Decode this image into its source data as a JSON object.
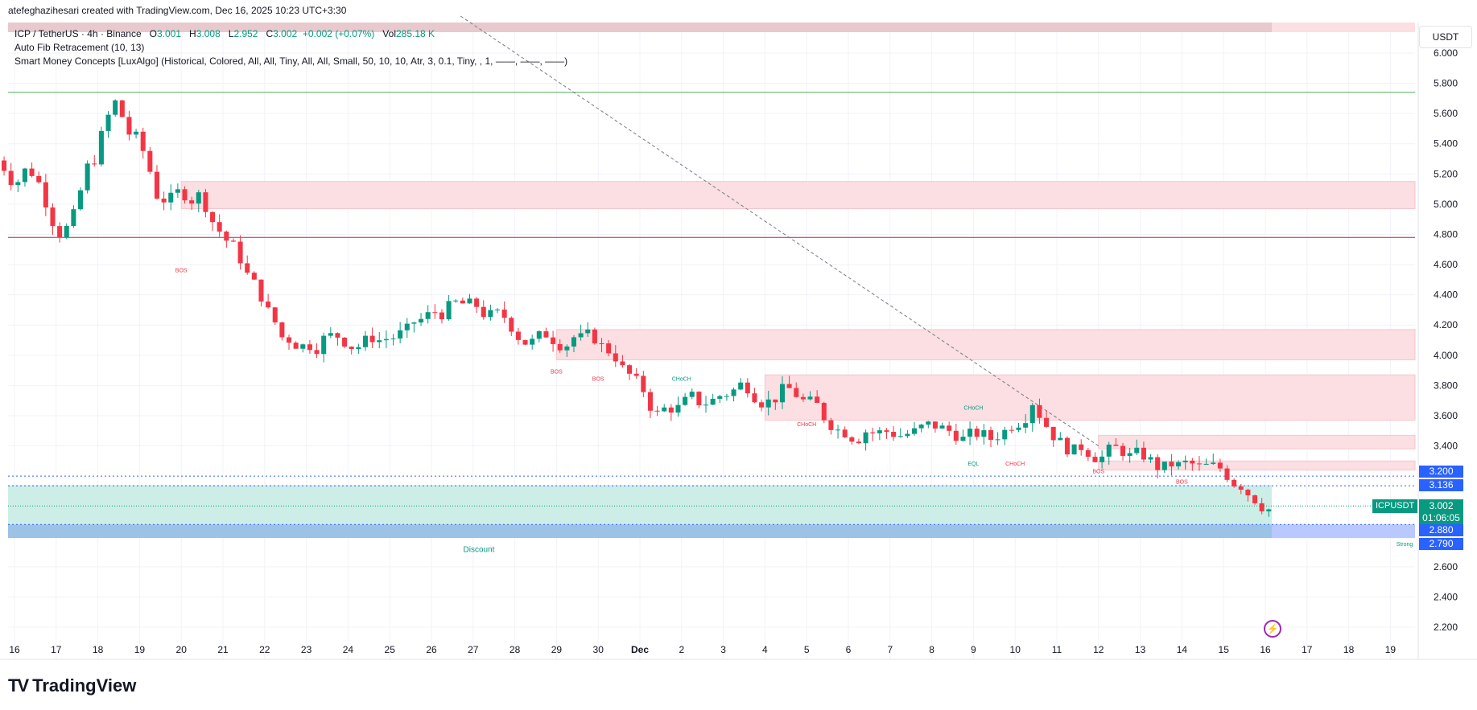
{
  "header": {
    "author_line": "atefeghazihesari created with TradingView.com, Dec 16, 2025 10:23 UTC+3:30"
  },
  "legend": {
    "symbol": "ICP / TetherUS · 4h · Binance",
    "o_label": "O",
    "o_value": "3.001",
    "h_label": "H",
    "h_value": "3.008",
    "l_label": "L",
    "l_value": "2.952",
    "c_label": "C",
    "c_value": "3.002",
    "change": "+0.002 (+0.07%)",
    "vol_label": "Vol",
    "vol_value": "285.18 K",
    "indicator1": "Auto Fib Retracement (10, 13)",
    "indicator2": "Smart Money Concepts [LuxAlgo] (Historical, Colored, All, All, Tiny, All, All, Small, 50, 10, 10, Atr, 3, 0.1, Tiny, , 1, ——, ——, ——)"
  },
  "price_axis": {
    "currency": "USDT",
    "ticks": [
      "6.000",
      "5.800",
      "5.600",
      "5.400",
      "5.200",
      "5.000",
      "4.800",
      "4.600",
      "4.400",
      "4.200",
      "4.000",
      "3.800",
      "3.600",
      "3.400",
      "2.600",
      "2.400",
      "2.200"
    ],
    "tag_3200": "3.200",
    "tag_3136": "3.136",
    "tag_2880": "2.880",
    "tag_2790": "2.790",
    "last_symbol": "ICPUSDT",
    "last_price": "3.002",
    "countdown": "01:06:05"
  },
  "time_axis": [
    "16",
    "17",
    "18",
    "19",
    "20",
    "21",
    "22",
    "23",
    "24",
    "25",
    "26",
    "27",
    "28",
    "29",
    "30",
    "Dec",
    "2",
    "3",
    "4",
    "5",
    "6",
    "7",
    "8",
    "9",
    "10",
    "11",
    "12",
    "13",
    "14",
    "15",
    "16",
    "17",
    "18",
    "19"
  ],
  "annotations": {
    "bos": "BOS",
    "choch": "CHoCH",
    "eql": "EQL",
    "discount": "Discount",
    "strong": "Strong"
  },
  "colors": {
    "up": "#089981",
    "down": "#f23645",
    "supply_zone": "#fbdfe2",
    "discount_zone": "#cdeee6",
    "blue_zone": "#9cc3e6",
    "green_line": "#4caf50",
    "red_line": "#c62828",
    "blue_tag": "#2962ff"
  },
  "brand": {
    "name": "TradingView"
  },
  "chart_data": {
    "type": "candlestick",
    "symbol": "ICP / TetherUS",
    "interval": "4h",
    "exchange": "Binance",
    "ylim": [
      2.1,
      6.2
    ],
    "x_dates_label_start": "16",
    "closes_daily_approx": [
      {
        "x": "Nov 16",
        "v": 5.25
      },
      {
        "x": "Nov 17",
        "v": 4.85
      },
      {
        "x": "Nov 18",
        "v": 5.65
      },
      {
        "x": "Nov 19",
        "v": 5.1
      },
      {
        "x": "Nov 20",
        "v": 5.05
      },
      {
        "x": "Nov 21",
        "v": 4.65
      },
      {
        "x": "Nov 22",
        "v": 4.12
      },
      {
        "x": "Nov 23",
        "v": 4.1
      },
      {
        "x": "Nov 24",
        "v": 4.08
      },
      {
        "x": "Nov 25",
        "v": 4.15
      },
      {
        "x": "Nov 26",
        "v": 4.3
      },
      {
        "x": "Nov 27",
        "v": 4.25
      },
      {
        "x": "Nov 28",
        "v": 4.08
      },
      {
        "x": "Nov 29",
        "v": 4.12
      },
      {
        "x": "Nov 30",
        "v": 4.0
      },
      {
        "x": "Dec 1",
        "v": 3.6
      },
      {
        "x": "Dec 2",
        "v": 3.7
      },
      {
        "x": "Dec 3",
        "v": 3.8
      },
      {
        "x": "Dec 4",
        "v": 3.75
      },
      {
        "x": "Dec 5",
        "v": 3.6
      },
      {
        "x": "Dec 6",
        "v": 3.5
      },
      {
        "x": "Dec 7",
        "v": 3.48
      },
      {
        "x": "Dec 8",
        "v": 3.5
      },
      {
        "x": "Dec 9",
        "v": 3.45
      },
      {
        "x": "Dec 10",
        "v": 3.7
      },
      {
        "x": "Dec 11",
        "v": 3.35
      },
      {
        "x": "Dec 12",
        "v": 3.38
      },
      {
        "x": "Dec 13",
        "v": 3.27
      },
      {
        "x": "Dec 14",
        "v": 3.25
      },
      {
        "x": "Dec 15",
        "v": 3.15
      },
      {
        "x": "Dec 16",
        "v": 3.002
      }
    ],
    "levels": {
      "green_horizontal": 5.74,
      "red_horizontal": 4.78,
      "blue_dotted_upper": 3.2,
      "blue_dotted_lower": 3.136,
      "discount_zone": [
        2.88,
        3.14
      ],
      "strong_low_zone": [
        2.79,
        2.88
      ]
    },
    "supply_zones": [
      {
        "from": "Nov 20",
        "to": "Dec 19",
        "low": 4.97,
        "high": 5.15
      },
      {
        "from": "Nov 29",
        "to": "Dec 19",
        "low": 3.97,
        "high": 4.17
      },
      {
        "from": "Dec 4",
        "to": "Dec 19",
        "low": 3.57,
        "high": 3.87
      },
      {
        "from": "Dec 12",
        "to": "Dec 19",
        "low": 3.38,
        "high": 3.47
      },
      {
        "from": "Dec 12",
        "to": "Dec 19",
        "low": 3.24,
        "high": 3.3
      }
    ],
    "trendline": {
      "from": {
        "x": "Nov 28",
        "v": 6.3
      },
      "to": {
        "x": "Dec 12",
        "v": 3.4
      },
      "style": "dashed"
    }
  }
}
